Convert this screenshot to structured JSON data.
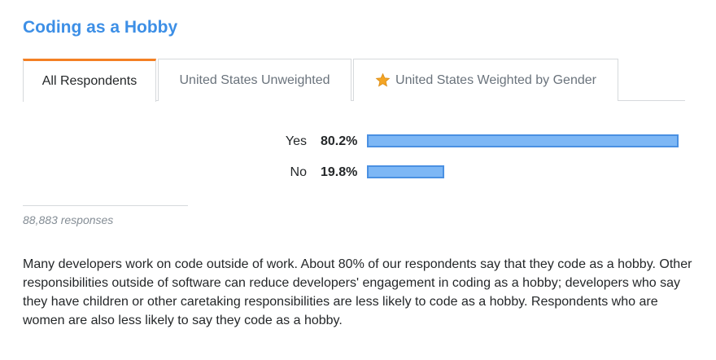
{
  "title": "Coding as a Hobby",
  "tabs": [
    {
      "label": "All Respondents",
      "active": true
    },
    {
      "label": "United States Unweighted",
      "active": false
    },
    {
      "label": "United States Weighted by Gender",
      "active": false,
      "icon": "star-icon"
    }
  ],
  "chart_data": {
    "type": "bar",
    "orientation": "horizontal",
    "categories": [
      "Yes",
      "No"
    ],
    "values": [
      80.2,
      19.8
    ],
    "value_labels": [
      "80.2%",
      "19.8%"
    ],
    "xlim": [
      0,
      80.2
    ],
    "bar_color": "#7db7f5",
    "bar_border_color": "#4a90e2"
  },
  "responses": "88,883 responses",
  "description": "Many developers work on code outside of work. About 80% of our respondents say that they code as a hobby. Other responsibilities outside of software can reduce developers' engagement in coding as a hobby; developers who say they have children or other caretaking responsibilities are less likely to code as a hobby. Respondents who are women are also less likely to say they code as a hobby.",
  "colors": {
    "title": "#3d8fe6",
    "active_tab_accent": "#f48024",
    "star": "#f4a524"
  }
}
